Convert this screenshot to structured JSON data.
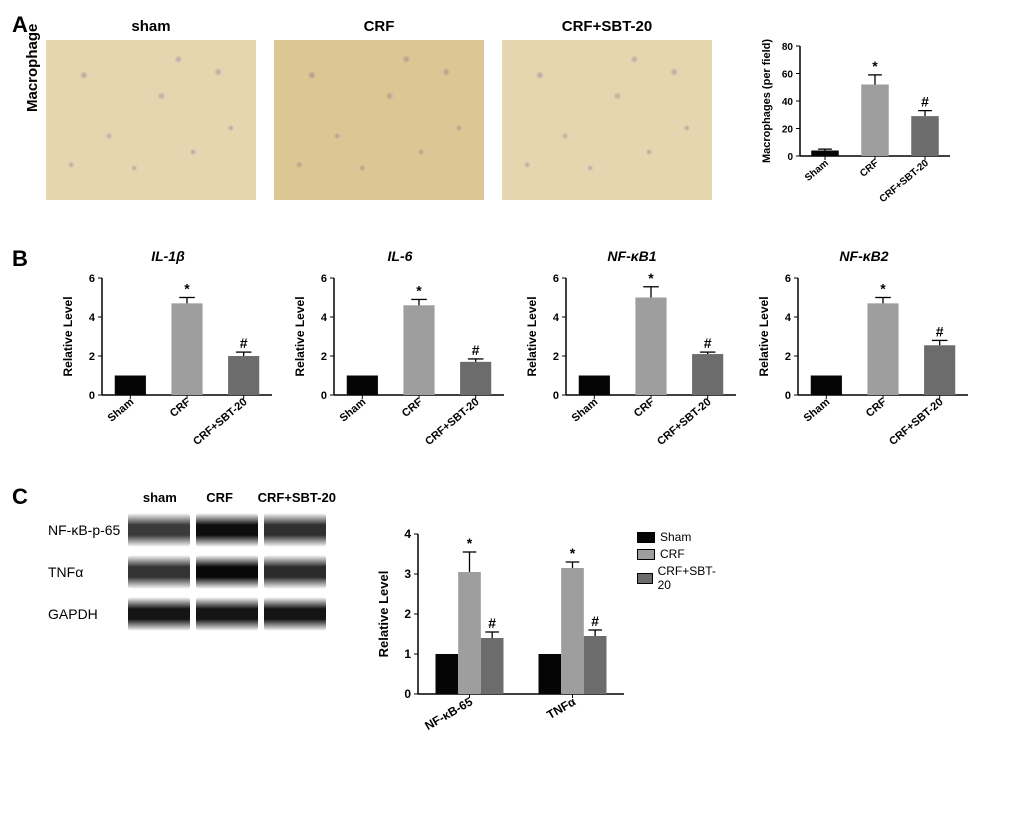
{
  "colors": {
    "sham": "#050505",
    "crf": "#9e9e9e",
    "crfsbt": "#6c6c6c",
    "axis": "#000000",
    "micro_bg": "#e6d6b0",
    "micro_bg_dark": "#dcc693"
  },
  "panelA": {
    "label": "A",
    "side_label": "Macrophage",
    "micrographs": [
      "sham",
      "CRF",
      "CRF+SBT-20"
    ],
    "chart": {
      "type": "bar",
      "ylabel": "Macrophages (per field)",
      "ylim": [
        0,
        80
      ],
      "ytick_step": 20,
      "categories": [
        "Sham",
        "CRF",
        "CRF+SBT-20"
      ],
      "values": [
        4,
        52,
        29
      ],
      "errors": [
        1,
        7,
        4
      ],
      "annotations": [
        "",
        "*",
        "#"
      ],
      "bar_colors": [
        "#050505",
        "#9e9e9e",
        "#6c6c6c"
      ],
      "bar_width": 0.55,
      "tick_fontsize": 10,
      "ylabel_fontsize": 11
    }
  },
  "panelB": {
    "label": "B",
    "ylabel": "Relative Level",
    "ylim": [
      0,
      6
    ],
    "ytick_step": 2,
    "categories": [
      "Sham",
      "CRF",
      "CRF+SBT-20"
    ],
    "bar_colors": [
      "#050505",
      "#9e9e9e",
      "#6c6c6c"
    ],
    "bar_width": 0.55,
    "charts": [
      {
        "title": "IL-1β",
        "values": [
          1.0,
          4.7,
          2.0
        ],
        "errors": [
          0.0,
          0.3,
          0.2
        ],
        "annotations": [
          "",
          "*",
          "#"
        ]
      },
      {
        "title": "IL-6",
        "values": [
          1.0,
          4.6,
          1.7
        ],
        "errors": [
          0.0,
          0.3,
          0.15
        ],
        "annotations": [
          "",
          "*",
          "#"
        ]
      },
      {
        "title": "NF-κB1",
        "values": [
          1.0,
          5.0,
          2.1
        ],
        "errors": [
          0.0,
          0.55,
          0.1
        ],
        "annotations": [
          "",
          "*",
          "#"
        ]
      },
      {
        "title": "NF-κB2",
        "values": [
          1.0,
          4.7,
          2.55
        ],
        "errors": [
          0.0,
          0.3,
          0.25
        ],
        "annotations": [
          "",
          "*",
          "#"
        ]
      }
    ]
  },
  "panelC": {
    "label": "C",
    "wb": {
      "head": [
        "sham",
        "CRF",
        "CRF+SBT-20"
      ],
      "head_widths": [
        62,
        62,
        88
      ],
      "rows": [
        {
          "label": "NF-κB-p-65",
          "intensities": [
            "#3a3a3a",
            "#0d0d0d",
            "#303030"
          ]
        },
        {
          "label": "TNFα",
          "intensities": [
            "#333333",
            "#080808",
            "#2b2b2b"
          ]
        },
        {
          "label": "GAPDH",
          "intensities": [
            "#141414",
            "#141414",
            "#141414"
          ]
        }
      ]
    },
    "chart": {
      "type": "grouped-bar",
      "ylabel": "Relative Level",
      "ylim": [
        0,
        4
      ],
      "ytick_step": 1,
      "groups": [
        "NF-κB-65",
        "TNFα"
      ],
      "series": [
        {
          "name": "Sham",
          "color": "#050505",
          "values": [
            1.0,
            1.0
          ],
          "errors": [
            0.0,
            0.0
          ],
          "annotations": [
            "",
            ""
          ]
        },
        {
          "name": "CRF",
          "color": "#9e9e9e",
          "values": [
            3.05,
            3.15
          ],
          "errors": [
            0.5,
            0.15
          ],
          "annotations": [
            "*",
            "*"
          ]
        },
        {
          "name": "CRF+SBT-20",
          "color": "#6c6c6c",
          "values": [
            1.4,
            1.45
          ],
          "errors": [
            0.15,
            0.15
          ],
          "annotations": [
            "#",
            "#"
          ]
        }
      ],
      "bar_width": 0.22,
      "legend_pos": "right"
    }
  }
}
